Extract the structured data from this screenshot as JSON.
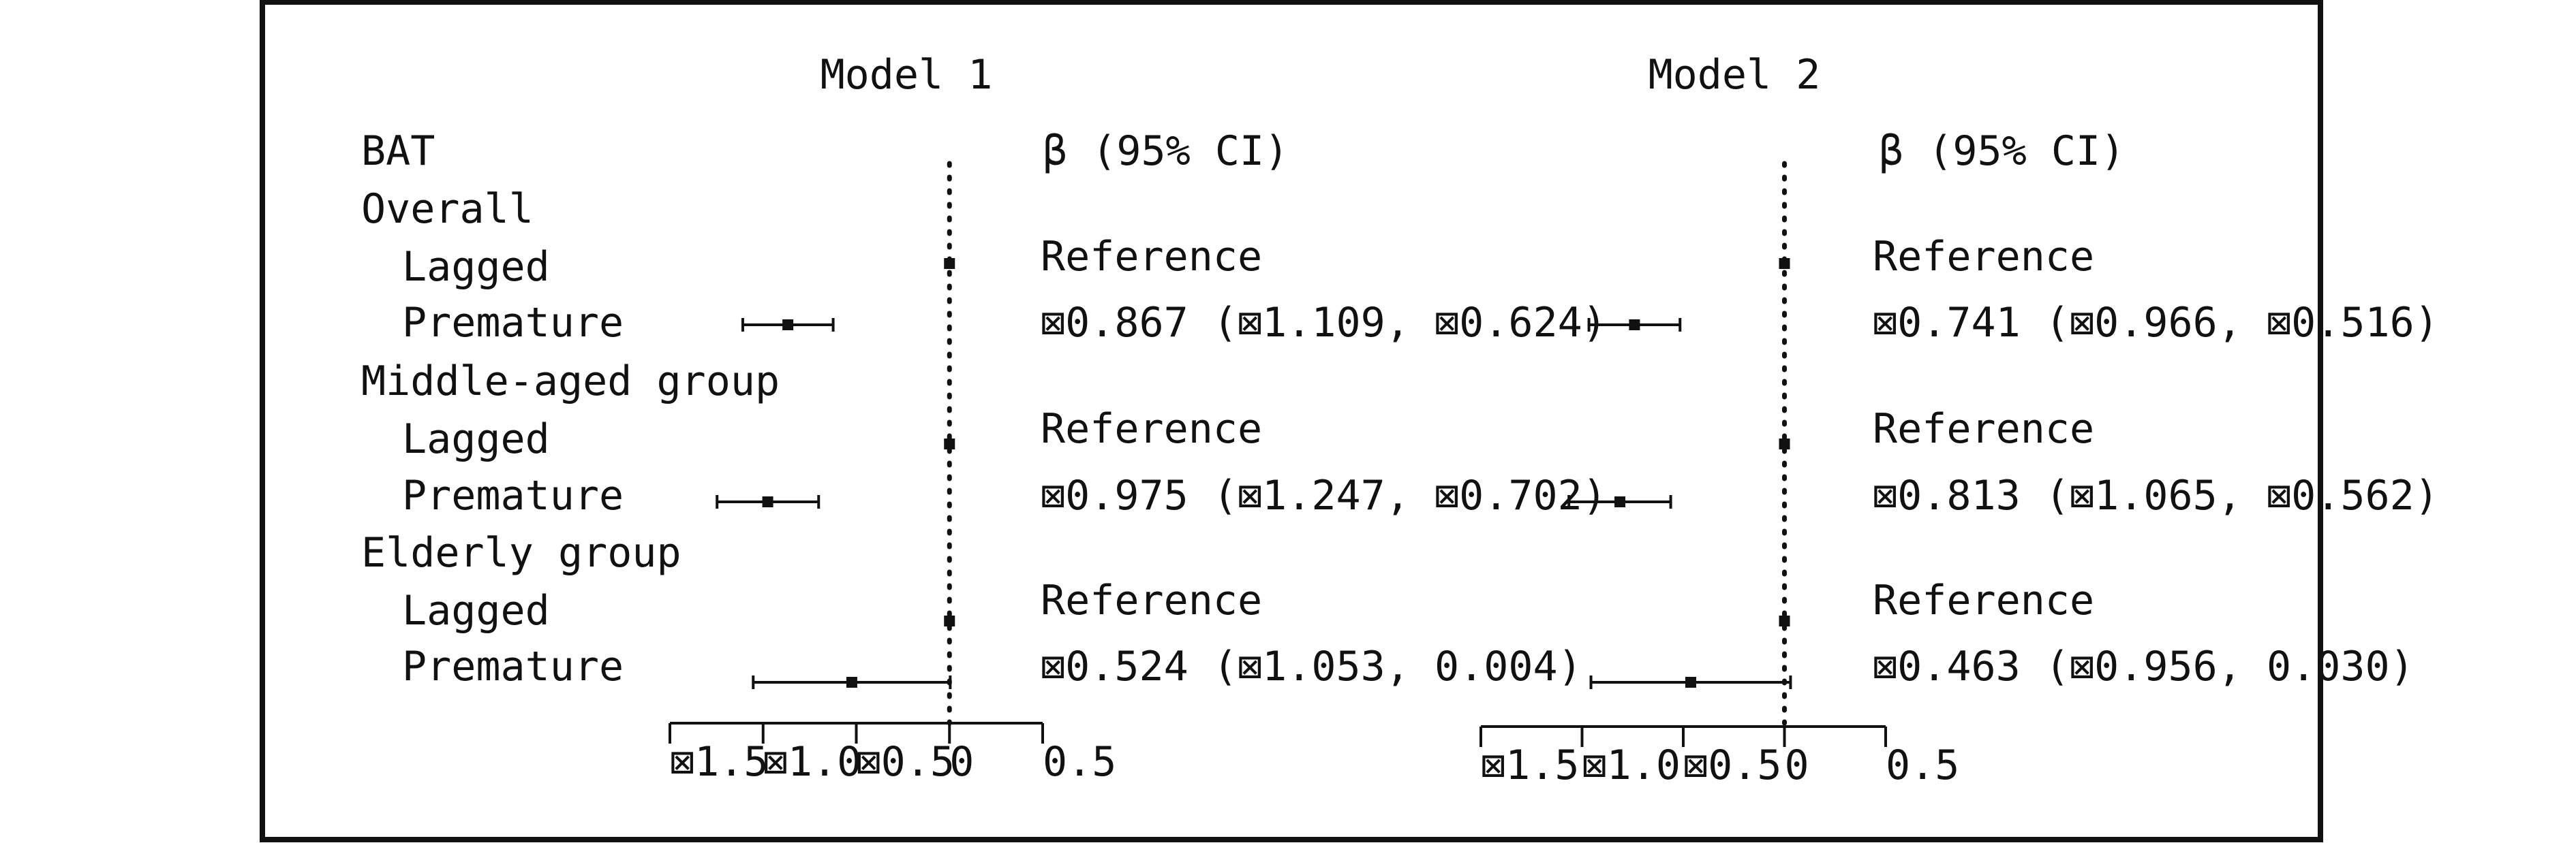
{
  "chart_data": {
    "type": "forest",
    "header_label": "BAT",
    "estimate_header": "β (95% CI)",
    "reference_label": "Reference",
    "rows": [
      {
        "label": "BAT",
        "kind": "header"
      },
      {
        "label": "Overall",
        "kind": "group"
      },
      {
        "label": "Lagged",
        "kind": "item",
        "ref": true
      },
      {
        "label": "Premature",
        "kind": "item",
        "ref": false
      },
      {
        "label": "Middle-aged group",
        "kind": "group"
      },
      {
        "label": "Lagged",
        "kind": "item",
        "ref": true
      },
      {
        "label": "Premature",
        "kind": "item",
        "ref": false
      },
      {
        "label": "Elderly group",
        "kind": "group"
      },
      {
        "label": "Lagged",
        "kind": "item",
        "ref": true
      },
      {
        "label": "Premature",
        "kind": "item",
        "ref": false
      }
    ],
    "panels": [
      {
        "title": "Model 1",
        "xlim": [
          -1.5,
          0.5
        ],
        "ticks": [
          -1.5,
          -1.0,
          -0.5,
          0,
          0.5
        ],
        "tick_labels": [
          "⊠1.5",
          "⊠1.0",
          "⊠0.5",
          "0",
          "0.5"
        ],
        "values": [
          {
            "est": 0,
            "lo": 0,
            "hi": 0
          },
          {
            "est": -0.867,
            "lo": -1.109,
            "hi": -0.624
          },
          {
            "est": 0,
            "lo": 0,
            "hi": 0
          },
          {
            "est": -0.975,
            "lo": -1.247,
            "hi": -0.702
          },
          {
            "est": 0,
            "lo": 0,
            "hi": 0
          },
          {
            "est": -0.524,
            "lo": -1.053,
            "hi": 0.004
          }
        ],
        "ci_text": [
          "Reference",
          "⊠0.867 (⊠1.109, ⊠0.624)",
          "Reference",
          "⊠0.975 (⊠1.247, ⊠0.702)",
          "Reference",
          "⊠0.524 (⊠1.053, 0.004)"
        ]
      },
      {
        "title": "Model 2",
        "xlim": [
          -1.5,
          0.5
        ],
        "ticks": [
          -1.5,
          -1.0,
          -0.5,
          0,
          0.5
        ],
        "tick_labels": [
          "⊠1.5",
          "⊠1.0",
          "⊠0.5",
          "0",
          "0.5"
        ],
        "values": [
          {
            "est": 0,
            "lo": 0,
            "hi": 0
          },
          {
            "est": -0.741,
            "lo": -0.966,
            "hi": -0.516
          },
          {
            "est": 0,
            "lo": 0,
            "hi": 0
          },
          {
            "est": -0.813,
            "lo": -1.065,
            "hi": -0.562
          },
          {
            "est": 0,
            "lo": 0,
            "hi": 0
          },
          {
            "est": -0.463,
            "lo": -0.956,
            "hi": 0.03
          }
        ],
        "ci_text": [
          "Reference",
          "⊠0.741 (⊠0.966, ⊠0.516)",
          "Reference",
          "⊠0.813 (⊠1.065, ⊠0.562)",
          "Reference",
          "⊠0.463 (⊠0.956, 0.030)"
        ]
      }
    ]
  }
}
